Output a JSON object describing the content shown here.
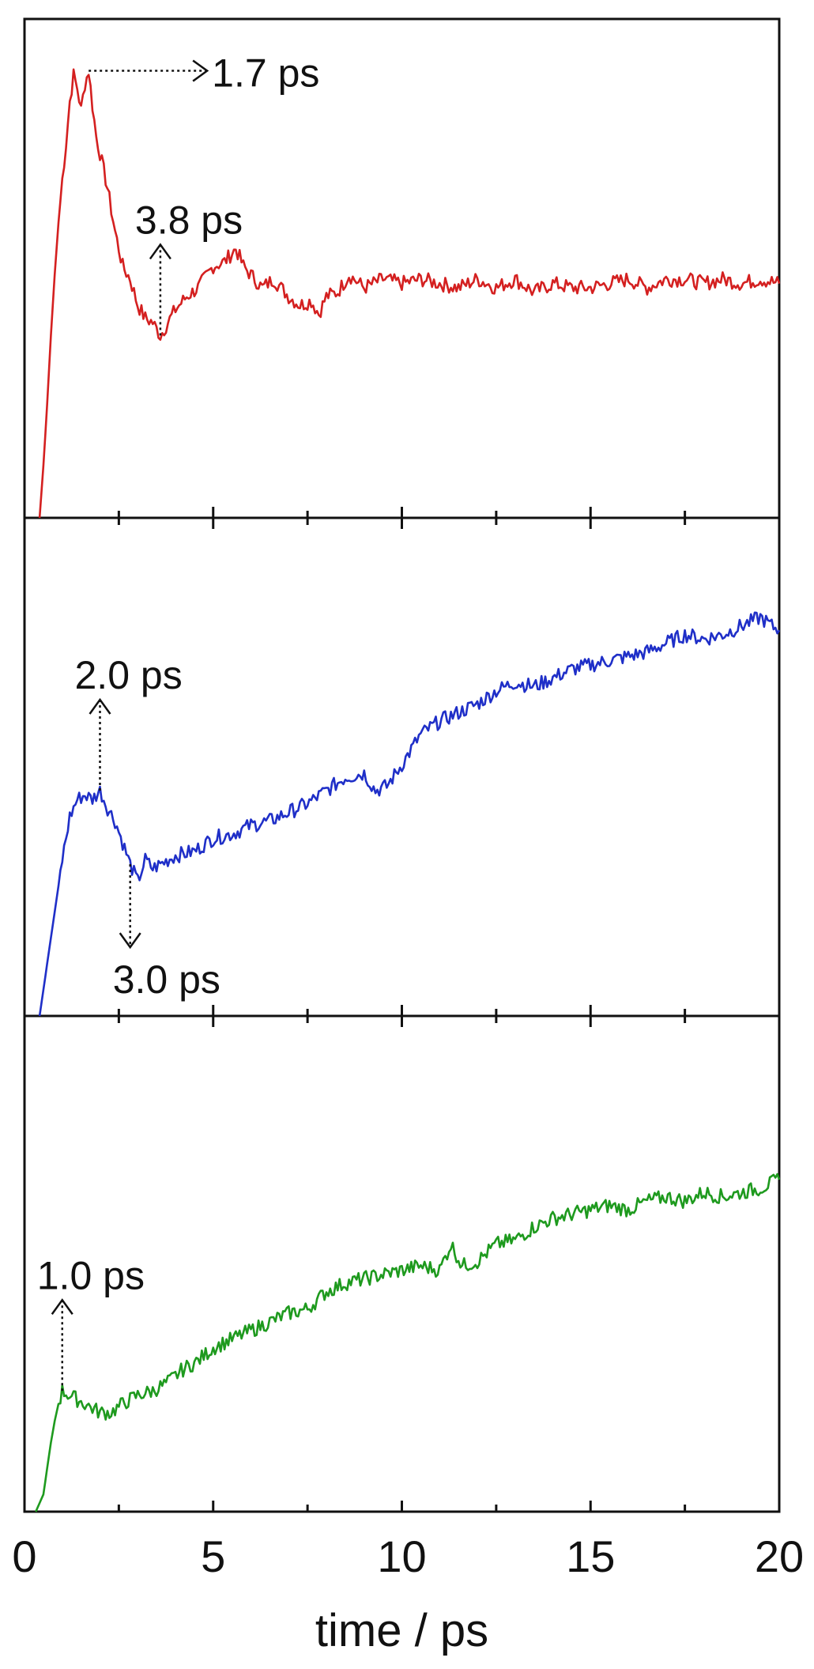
{
  "chart_data": [
    {
      "type": "line",
      "panel": "top",
      "series": [
        {
          "color": "#d42020",
          "x": [
            0.4,
            0.5,
            0.6,
            0.7,
            0.8,
            0.9,
            1.0,
            1.1,
            1.2,
            1.3,
            1.4,
            1.5,
            1.6,
            1.7,
            1.8,
            1.9,
            2.0,
            2.2,
            2.4,
            2.6,
            2.8,
            3.0,
            3.2,
            3.4,
            3.6,
            3.8,
            4.0,
            4.3,
            4.6,
            5.0,
            5.3,
            5.6,
            5.8,
            6.0,
            6.3,
            6.6,
            7.0,
            7.3,
            7.6,
            7.8,
            8.0,
            8.3,
            8.6,
            9.0,
            9.5,
            10.0,
            10.5,
            11.0,
            11.5,
            12.0,
            12.5,
            13.0,
            13.5,
            14.0,
            14.5,
            15.0,
            15.5,
            16.0,
            16.5,
            17.0,
            17.5,
            18.0,
            18.5,
            19.0,
            19.5,
            20.0
          ],
          "y": [
            0.0,
            0.12,
            0.26,
            0.42,
            0.56,
            0.68,
            0.78,
            0.86,
            0.96,
            1.02,
            0.99,
            0.94,
            1.0,
            1.03,
            0.95,
            0.88,
            0.84,
            0.76,
            0.66,
            0.58,
            0.55,
            0.49,
            0.46,
            0.45,
            0.42,
            0.45,
            0.48,
            0.51,
            0.53,
            0.58,
            0.59,
            0.62,
            0.58,
            0.56,
            0.53,
            0.55,
            0.51,
            0.49,
            0.5,
            0.47,
            0.51,
            0.52,
            0.56,
            0.53,
            0.55,
            0.54,
            0.55,
            0.54,
            0.53,
            0.55,
            0.53,
            0.55,
            0.52,
            0.54,
            0.53,
            0.53,
            0.54,
            0.55,
            0.53,
            0.55,
            0.55,
            0.54,
            0.55,
            0.54,
            0.55,
            0.54
          ]
        }
      ],
      "annotations": [
        {
          "text": "1.7 ps",
          "x": 1.7,
          "direction": "right"
        },
        {
          "text": "3.8 ps",
          "x": 3.6,
          "direction": "up"
        }
      ]
    },
    {
      "type": "line",
      "panel": "middle",
      "series": [
        {
          "color": "#1f2fc8",
          "x": [
            0.4,
            0.5,
            0.6,
            0.7,
            0.8,
            0.9,
            1.0,
            1.2,
            1.4,
            1.6,
            1.8,
            2.0,
            2.2,
            2.4,
            2.6,
            2.8,
            3.0,
            3.2,
            3.4,
            3.6,
            3.8,
            4.0,
            4.5,
            5.0,
            5.5,
            6.0,
            6.5,
            7.0,
            7.5,
            8.0,
            8.5,
            9.0,
            9.3,
            9.6,
            10.0,
            10.5,
            11.0,
            11.5,
            12.0,
            12.5,
            13.0,
            13.5,
            14.0,
            14.5,
            15.0,
            15.5,
            16.0,
            16.5,
            17.0,
            17.5,
            18.0,
            18.5,
            19.0,
            19.5,
            19.8,
            20.0
          ],
          "y": [
            0.0,
            0.06,
            0.12,
            0.18,
            0.24,
            0.3,
            0.36,
            0.46,
            0.5,
            0.51,
            0.5,
            0.52,
            0.48,
            0.45,
            0.4,
            0.35,
            0.31,
            0.36,
            0.34,
            0.35,
            0.36,
            0.37,
            0.38,
            0.41,
            0.42,
            0.44,
            0.45,
            0.47,
            0.49,
            0.52,
            0.55,
            0.56,
            0.52,
            0.53,
            0.58,
            0.65,
            0.68,
            0.7,
            0.72,
            0.75,
            0.77,
            0.76,
            0.78,
            0.8,
            0.81,
            0.82,
            0.83,
            0.84,
            0.86,
            0.88,
            0.87,
            0.88,
            0.9,
            0.92,
            0.9,
            0.89
          ]
        }
      ],
      "annotations": [
        {
          "text": "2.0 ps",
          "x": 2.0,
          "direction": "up"
        },
        {
          "text": "3.0 ps",
          "x": 2.8,
          "direction": "down"
        }
      ]
    },
    {
      "type": "line",
      "panel": "bottom",
      "xlabel": "time / ps",
      "xlim": [
        0,
        20
      ],
      "xticks": [
        0,
        5,
        10,
        15,
        20
      ],
      "series": [
        {
          "color": "#1e9a1e",
          "x": [
            0.3,
            0.5,
            0.6,
            0.7,
            0.8,
            0.9,
            1.0,
            1.2,
            1.4,
            1.6,
            1.8,
            2.0,
            2.3,
            2.6,
            3.0,
            3.4,
            3.8,
            4.2,
            4.6,
            5.0,
            5.5,
            6.0,
            6.5,
            7.0,
            7.5,
            8.0,
            8.5,
            9.0,
            9.5,
            10.0,
            10.5,
            11.0,
            11.3,
            11.6,
            12.0,
            12.5,
            13.0,
            13.5,
            14.0,
            14.5,
            15.0,
            15.5,
            16.0,
            16.5,
            17.0,
            17.5,
            18.0,
            18.5,
            19.0,
            19.5,
            20.0
          ],
          "y": [
            0.0,
            0.04,
            0.1,
            0.16,
            0.21,
            0.25,
            0.28,
            0.27,
            0.26,
            0.25,
            0.24,
            0.23,
            0.23,
            0.25,
            0.27,
            0.28,
            0.3,
            0.33,
            0.35,
            0.38,
            0.4,
            0.42,
            0.44,
            0.46,
            0.47,
            0.51,
            0.53,
            0.54,
            0.55,
            0.56,
            0.57,
            0.56,
            0.62,
            0.57,
            0.58,
            0.62,
            0.63,
            0.66,
            0.68,
            0.69,
            0.7,
            0.71,
            0.7,
            0.72,
            0.73,
            0.72,
            0.74,
            0.73,
            0.74,
            0.75,
            0.77
          ]
        }
      ],
      "annotations": [
        {
          "text": "1.0 ps",
          "x": 1.0,
          "direction": "up"
        }
      ]
    }
  ]
}
